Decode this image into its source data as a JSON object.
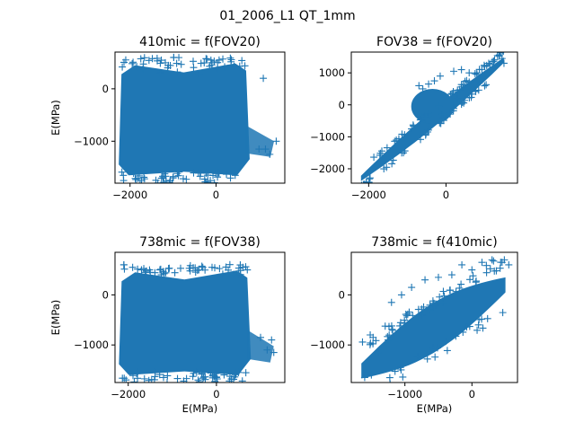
{
  "figure_title": "01_2006_L1 QT_1mm",
  "chart_data": [
    {
      "type": "scatter",
      "title": "410mic = f(FOV20)",
      "xlabel": "",
      "ylabel": "E(MPa)",
      "xlim": [
        -2350,
        1600
      ],
      "ylim": [
        -1800,
        700
      ],
      "xticks": [
        -2000,
        0
      ],
      "yticks": [
        -1000,
        0
      ],
      "marker": "+",
      "color": "#1f77b4",
      "pattern": "block",
      "cloud": {
        "x": [
          -2200,
          700
        ],
        "y": [
          -1650,
          450
        ]
      },
      "tail": {
        "x": [
          700,
          1350
        ],
        "y": [
          -1300,
          -700
        ]
      },
      "outliers": [
        [
          -2100,
          550
        ],
        [
          -1950,
          480
        ],
        [
          -1700,
          380
        ],
        [
          -1300,
          300
        ],
        [
          -900,
          320
        ],
        [
          -400,
          280
        ],
        [
          -150,
          430
        ],
        [
          200,
          420
        ],
        [
          550,
          430
        ],
        [
          1100,
          200
        ],
        [
          1000,
          -1150
        ],
        [
          1150,
          -1150
        ],
        [
          1250,
          -1250
        ],
        [
          1400,
          -1000
        ],
        [
          -2150,
          -1750
        ],
        [
          -1000,
          -1700
        ],
        [
          50,
          -1600
        ]
      ]
    },
    {
      "type": "scatter",
      "title": "FOV38 = f(FOV20)",
      "xlabel": "",
      "ylabel": "",
      "xlim": [
        -2450,
        1850
      ],
      "ylim": [
        -2450,
        1650
      ],
      "xticks": [
        -2000,
        0
      ],
      "yticks": [
        -2000,
        -1000,
        0,
        1000
      ],
      "marker": "+",
      "color": "#1f77b4",
      "pattern": "band",
      "band": {
        "x": [
          -2200,
          1500
        ],
        "slope": 1.0,
        "offset": -100,
        "width": 280
      },
      "blob": {
        "x": [
          -900,
          200
        ],
        "y": [
          -600,
          500
        ]
      },
      "outliers": [
        [
          -700,
          600
        ],
        [
          -600,
          500
        ],
        [
          -450,
          650
        ],
        [
          -300,
          750
        ],
        [
          -150,
          900
        ],
        [
          200,
          1050
        ],
        [
          400,
          1100
        ],
        [
          600,
          1000
        ],
        [
          800,
          950
        ],
        [
          1000,
          1200
        ],
        [
          1200,
          1350
        ],
        [
          1450,
          1450
        ],
        [
          1500,
          1300
        ],
        [
          -1100,
          -1500
        ],
        [
          -100,
          -300
        ],
        [
          300,
          200
        ]
      ]
    },
    {
      "type": "scatter",
      "title": "738mic = f(FOV38)",
      "xlabel": "E(MPa)",
      "ylabel": "E(MPa)",
      "xlim": [
        -2300,
        1550
      ],
      "ylim": [
        -1750,
        850
      ],
      "xticks": [
        -2000,
        0
      ],
      "yticks": [
        -1000,
        0
      ],
      "marker": "+",
      "color": "#1f77b4",
      "pattern": "block",
      "cloud": {
        "x": [
          -2150,
          700
        ],
        "y": [
          -1600,
          450
        ]
      },
      "tail": {
        "x": [
          700,
          1300
        ],
        "y": [
          -1350,
          -700
        ]
      },
      "outliers": [
        [
          -2100,
          600
        ],
        [
          -1900,
          550
        ],
        [
          -1700,
          500
        ],
        [
          -1500,
          450
        ],
        [
          -1250,
          400
        ],
        [
          -400,
          500
        ],
        [
          -100,
          550
        ],
        [
          600,
          550
        ],
        [
          700,
          500
        ],
        [
          1000,
          -850
        ],
        [
          1150,
          -1100
        ],
        [
          1250,
          -900
        ],
        [
          1300,
          -1150
        ],
        [
          -2050,
          -1700
        ],
        [
          -1200,
          -1650
        ],
        [
          0,
          -1650
        ],
        [
          500,
          -1550
        ]
      ]
    },
    {
      "type": "scatter",
      "title": "738mic = f(410mic)",
      "xlabel": "E(MPa)",
      "ylabel": "",
      "xlim": [
        -1800,
        680
      ],
      "ylim": [
        -1750,
        850
      ],
      "xticks": [
        -1000,
        0
      ],
      "yticks": [
        -1000,
        0
      ],
      "marker": "+",
      "color": "#1f77b4",
      "pattern": "ellipse",
      "band": {
        "x": [
          -1650,
          500
        ],
        "slope": 0.8,
        "offset": -200,
        "width": 500
      },
      "outliers": [
        [
          -1200,
          -150
        ],
        [
          -1050,
          0
        ],
        [
          -900,
          150
        ],
        [
          -700,
          300
        ],
        [
          -500,
          350
        ],
        [
          -300,
          400
        ],
        [
          -150,
          600
        ],
        [
          0,
          500
        ],
        [
          150,
          650
        ],
        [
          300,
          700
        ],
        [
          450,
          650
        ],
        [
          550,
          600
        ],
        [
          -1600,
          -1650
        ],
        [
          -1500,
          -1600
        ],
        [
          -1400,
          -1150
        ],
        [
          -1250,
          -900
        ]
      ]
    }
  ]
}
